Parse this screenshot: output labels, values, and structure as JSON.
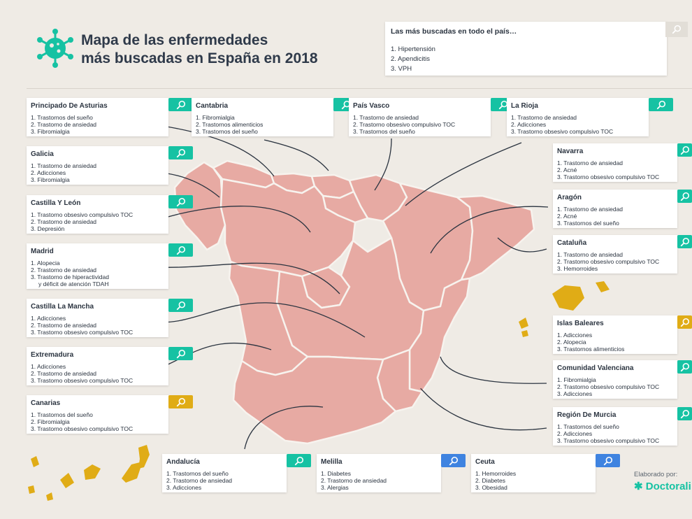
{
  "title": {
    "line1": "Mapa de las enfermedades",
    "line2": "más buscadas en España en 2018"
  },
  "national": {
    "header": "Las más buscadas en todo el país…",
    "items": [
      "1. Hipertensión",
      "2. Apendicitis",
      "3. VPH"
    ]
  },
  "regions": [
    {
      "name": "Principado De Asturias",
      "items": [
        "1. Trastornos del sueño",
        "2. Trastorno de ansiedad",
        "3. Fibromialgia"
      ]
    },
    {
      "name": "Cantabria",
      "items": [
        "1. Fibromialgia",
        "2. Trastornos alimenticios",
        "3. Trastornos del sueño"
      ]
    },
    {
      "name": "País Vasco",
      "items": [
        "1. Trastorno de ansiedad",
        "2. Trastorno obsesivo compulsivo TOC",
        "3. Trastornos del sueño"
      ]
    },
    {
      "name": "La Rioja",
      "items": [
        "1. Trastorno de ansiedad",
        "2. Adicciones",
        "3. Trastorno obsesivo compulsivo TOC"
      ]
    },
    {
      "name": "Galicia",
      "items": [
        "1. Trastorno de ansiedad",
        "2. Adicciones",
        "3. Fibromialgia"
      ]
    },
    {
      "name": "Castilla Y León",
      "items": [
        "1. Trastorno obsesivo compulsivo TOC",
        "2. Trastorno de ansiedad",
        "3. Depresión"
      ]
    },
    {
      "name": "Madrid",
      "items": [
        "1. Alopecia",
        "2. Trastorno de ansiedad",
        "3. Trastorno de hiperactividad",
        "y déficit de atención TDAH"
      ]
    },
    {
      "name": "Castilla La Mancha",
      "items": [
        "1. Adicciones",
        "2. Trastorno de ansiedad",
        "3. Trastorno obsesivo compulsivo TOC"
      ]
    },
    {
      "name": "Extremadura",
      "items": [
        "1. Adicciones",
        "2. Trastorno de ansiedad",
        "3. Trastorno obsesivo compulsivo TOC"
      ]
    },
    {
      "name": "Canarias",
      "items": [
        "1. Trastornos del sueño",
        "2. Fibromialgia",
        "3. Trastorno obsesivo compulsivo TOC"
      ]
    },
    {
      "name": "Navarra",
      "items": [
        "1. Trastorno de ansiedad",
        "2. Acné",
        "3. Trastorno obsesivo compulsivo TOC"
      ]
    },
    {
      "name": "Aragón",
      "items": [
        "1. Trastorno de ansiedad",
        "2. Acné",
        "3. Trastornos del sueño"
      ]
    },
    {
      "name": "Cataluña",
      "items": [
        "1. Trastorno de ansiedad",
        "2. Trastorno obsesivo compulsivo TOC",
        "3. Hemorroides"
      ]
    },
    {
      "name": "Islas Baleares",
      "items": [
        "1. Adicciones",
        "2. Alopecia",
        "3. Trastornos alimenticios"
      ]
    },
    {
      "name": "Comunidad Valenciana",
      "items": [
        "1. Fibromialgia",
        "2. Trastorno obsesivo compulsivo TOC",
        "3. Adicciones"
      ]
    },
    {
      "name": "Región De Murcia",
      "items": [
        "1. Trastornos del sueño",
        "2. Adicciones",
        "3. Trastorno obsesivo compulsivo TOC"
      ]
    },
    {
      "name": "Andalucía",
      "items": [
        "1. Trastornos del sueño",
        "2. Trastorno de ansiedad",
        "3. Adicciones"
      ]
    },
    {
      "name": "Melilla",
      "items": [
        "1. Diabetes",
        "2. Trastorno de ansiedad",
        "3. Alergias"
      ]
    },
    {
      "name": "Ceuta",
      "items": [
        "1. Hemorroides",
        "2. Diabetes",
        "3. Obesidad"
      ]
    }
  ],
  "footer": {
    "credit": "Elaborado por:",
    "brand": "Doctorali"
  },
  "colors": {
    "map": "#e7aaa3",
    "islands": "#e0ac16",
    "accent_green": "#16c2a3",
    "accent_yellow": "#e0ac16",
    "accent_blue": "#3f83e0"
  }
}
